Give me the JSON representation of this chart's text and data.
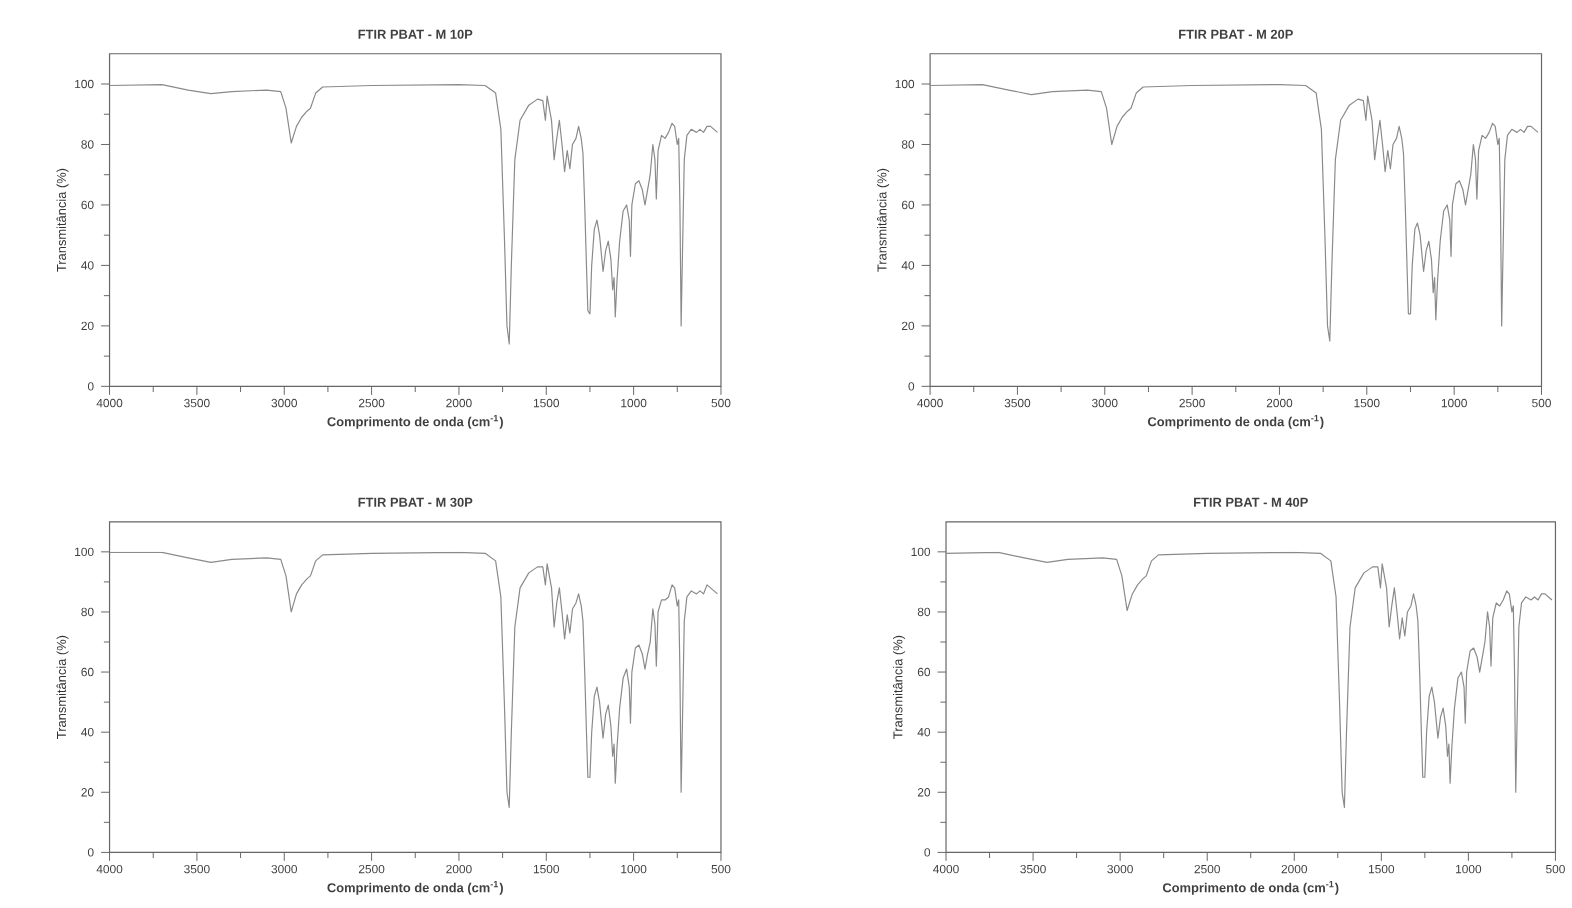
{
  "chart_data": [
    {
      "type": "line",
      "title": "FTIR PBAT - M 10P",
      "xlabel": "Comprimento de onda (cm$^{-1}$)",
      "ylabel": "Transmitância (%)",
      "color": "#8a8a8a",
      "xlim": [
        4000,
        500
      ],
      "ylim": [
        0,
        110
      ],
      "xticks": [
        4000,
        3500,
        3000,
        2500,
        2000,
        1500,
        1000,
        500
      ],
      "yticks": [
        0,
        20,
        40,
        60,
        80,
        100
      ],
      "x": [
        4000,
        3700,
        3550,
        3420,
        3300,
        3100,
        3020,
        2990,
        2960,
        2930,
        2900,
        2870,
        2850,
        2820,
        2780,
        2500,
        2000,
        1850,
        1790,
        1760,
        1740,
        1725,
        1712,
        1700,
        1680,
        1650,
        1600,
        1550,
        1520,
        1505,
        1495,
        1470,
        1455,
        1440,
        1425,
        1410,
        1395,
        1380,
        1365,
        1350,
        1330,
        1315,
        1300,
        1290,
        1280,
        1270,
        1262,
        1250,
        1240,
        1225,
        1210,
        1195,
        1175,
        1160,
        1145,
        1130,
        1120,
        1112,
        1105,
        1095,
        1080,
        1060,
        1040,
        1025,
        1018,
        1010,
        990,
        970,
        950,
        935,
        920,
        905,
        890,
        878,
        870,
        860,
        840,
        820,
        800,
        780,
        765,
        750,
        742,
        735,
        728,
        720,
        710,
        695,
        670,
        640,
        620,
        600,
        580,
        560,
        540,
        520
      ],
      "values": [
        99.5,
        99.8,
        98,
        96.8,
        97.5,
        98,
        97.5,
        92,
        80.5,
        86,
        89,
        91,
        92,
        97,
        99,
        99.5,
        99.8,
        99.5,
        97,
        85,
        50,
        20,
        14,
        40,
        75,
        88,
        93,
        95,
        94.5,
        88,
        96,
        88,
        75,
        82,
        88,
        80,
        71,
        78,
        72,
        80,
        82,
        86,
        82,
        77,
        60,
        40,
        25,
        24,
        40,
        52,
        55,
        50,
        38,
        45,
        48,
        42,
        32,
        36,
        23,
        35,
        48,
        58,
        60,
        55,
        43,
        60,
        67,
        68,
        65,
        60,
        65,
        70,
        80,
        75,
        62,
        78,
        83,
        82,
        84,
        87,
        86,
        80,
        82,
        60,
        20,
        45,
        75,
        83,
        85,
        84,
        85,
        84,
        86,
        86,
        85,
        84
      ]
    },
    {
      "type": "line",
      "title": "FTIR PBAT - M 20P",
      "xlabel": "Comprimento de onda (cm$^{-1}$)",
      "ylabel": "Transmitância (%)",
      "color": "#8a8a8a",
      "xlim": [
        4000,
        500
      ],
      "ylim": [
        0,
        110
      ],
      "xticks": [
        4000,
        3500,
        3000,
        2500,
        2000,
        1500,
        1000,
        500
      ],
      "yticks": [
        0,
        20,
        40,
        60,
        80,
        100
      ],
      "x": [
        4000,
        3700,
        3550,
        3420,
        3300,
        3100,
        3020,
        2990,
        2960,
        2930,
        2900,
        2870,
        2850,
        2820,
        2780,
        2500,
        2000,
        1850,
        1790,
        1760,
        1740,
        1725,
        1712,
        1700,
        1680,
        1650,
        1600,
        1550,
        1520,
        1505,
        1495,
        1470,
        1455,
        1440,
        1425,
        1410,
        1395,
        1380,
        1365,
        1350,
        1330,
        1315,
        1300,
        1290,
        1280,
        1270,
        1262,
        1250,
        1240,
        1225,
        1210,
        1195,
        1175,
        1160,
        1145,
        1130,
        1120,
        1112,
        1105,
        1095,
        1080,
        1060,
        1040,
        1025,
        1018,
        1010,
        990,
        970,
        950,
        935,
        920,
        905,
        890,
        878,
        870,
        860,
        840,
        820,
        800,
        780,
        765,
        750,
        742,
        735,
        728,
        720,
        710,
        695,
        670,
        640,
        620,
        600,
        580,
        560,
        540,
        520
      ],
      "values": [
        99.5,
        99.8,
        98,
        96.5,
        97.5,
        98,
        97.5,
        92,
        80,
        86,
        89,
        91,
        92,
        97,
        99,
        99.5,
        99.8,
        99.5,
        97,
        85,
        50,
        20,
        15,
        40,
        75,
        88,
        93,
        95,
        94.5,
        88,
        96,
        88,
        75,
        82,
        88,
        80,
        71,
        78,
        72,
        80,
        82,
        86,
        82,
        77,
        60,
        40,
        24,
        24,
        40,
        52,
        54,
        50,
        38,
        45,
        48,
        42,
        31,
        36,
        22,
        35,
        48,
        58,
        60,
        55,
        43,
        60,
        67,
        68,
        65,
        60,
        65,
        70,
        80,
        75,
        62,
        78,
        83,
        82,
        84,
        87,
        86,
        80,
        82,
        60,
        20,
        45,
        75,
        83,
        85,
        84,
        85,
        84,
        86,
        86,
        85,
        84
      ]
    },
    {
      "type": "line",
      "title": "FTIR PBAT - M 30P",
      "xlabel": "Comprimento de onda (cm$^{-1}$)",
      "ylabel": "Transmitância (%)",
      "color": "#8a8a8a",
      "xlim": [
        4000,
        500
      ],
      "ylim": [
        0,
        110
      ],
      "xticks": [
        4000,
        3500,
        3000,
        2500,
        2000,
        1500,
        1000,
        500
      ],
      "yticks": [
        0,
        20,
        40,
        60,
        80,
        100
      ],
      "x": [
        4000,
        3700,
        3550,
        3420,
        3300,
        3100,
        3020,
        2990,
        2960,
        2930,
        2900,
        2870,
        2850,
        2820,
        2780,
        2500,
        2000,
        1850,
        1790,
        1760,
        1740,
        1725,
        1712,
        1700,
        1680,
        1650,
        1600,
        1550,
        1520,
        1505,
        1495,
        1470,
        1455,
        1440,
        1425,
        1410,
        1395,
        1380,
        1365,
        1350,
        1330,
        1315,
        1300,
        1290,
        1280,
        1270,
        1262,
        1250,
        1240,
        1225,
        1210,
        1195,
        1175,
        1160,
        1145,
        1130,
        1120,
        1112,
        1105,
        1095,
        1080,
        1060,
        1040,
        1025,
        1018,
        1010,
        990,
        970,
        950,
        935,
        920,
        905,
        890,
        878,
        870,
        860,
        840,
        820,
        800,
        780,
        765,
        750,
        742,
        735,
        728,
        720,
        710,
        695,
        670,
        640,
        620,
        600,
        580,
        560,
        540,
        520
      ],
      "values": [
        99.8,
        99.8,
        98,
        96.5,
        97.5,
        98,
        97.5,
        92,
        80,
        86,
        89,
        91,
        92,
        97,
        99,
        99.5,
        99.8,
        99.5,
        97,
        85,
        50,
        20,
        15,
        40,
        75,
        88,
        93,
        95,
        95,
        89,
        96,
        88,
        75,
        83,
        88,
        80,
        71,
        79,
        73,
        81,
        83,
        86,
        82,
        77,
        60,
        40,
        25,
        25,
        40,
        52,
        55,
        50,
        38,
        46,
        49,
        42,
        32,
        36,
        23,
        35,
        48,
        58,
        61,
        55,
        43,
        60,
        68,
        69,
        66,
        61,
        66,
        70,
        81,
        76,
        62,
        80,
        84,
        84,
        85,
        89,
        88,
        82,
        84,
        60,
        20,
        45,
        77,
        85,
        87,
        86,
        87,
        86,
        89,
        88,
        87,
        86
      ]
    },
    {
      "type": "line",
      "title": "FTIR PBAT - M 40P",
      "xlabel": "Comprimento de onda (cm$^{-1}$)",
      "ylabel": "Transmitância (%)",
      "color": "#8a8a8a",
      "xlim": [
        4000,
        500
      ],
      "ylim": [
        0,
        110
      ],
      "xticks": [
        4000,
        3500,
        3000,
        2500,
        2000,
        1500,
        1000,
        500
      ],
      "yticks": [
        0,
        20,
        40,
        60,
        80,
        100
      ],
      "x": [
        4000,
        3700,
        3550,
        3420,
        3300,
        3100,
        3020,
        2990,
        2960,
        2930,
        2900,
        2870,
        2850,
        2820,
        2780,
        2500,
        2000,
        1850,
        1790,
        1760,
        1740,
        1725,
        1712,
        1700,
        1680,
        1650,
        1600,
        1550,
        1520,
        1505,
        1495,
        1470,
        1455,
        1440,
        1425,
        1410,
        1395,
        1380,
        1365,
        1350,
        1330,
        1315,
        1300,
        1290,
        1280,
        1270,
        1262,
        1250,
        1240,
        1225,
        1210,
        1195,
        1175,
        1160,
        1145,
        1130,
        1120,
        1112,
        1105,
        1095,
        1080,
        1060,
        1040,
        1025,
        1018,
        1010,
        990,
        970,
        950,
        935,
        920,
        905,
        890,
        878,
        870,
        860,
        840,
        820,
        800,
        780,
        765,
        750,
        742,
        735,
        728,
        720,
        710,
        695,
        670,
        640,
        620,
        600,
        580,
        560,
        540,
        520
      ],
      "values": [
        99.5,
        99.8,
        98,
        96.5,
        97.5,
        98,
        97.5,
        92,
        80.5,
        86,
        89,
        91,
        92,
        97,
        99,
        99.5,
        99.8,
        99.5,
        97,
        85,
        50,
        20,
        15,
        40,
        75,
        88,
        93,
        95,
        95,
        88,
        96,
        88,
        75,
        82,
        88,
        80,
        71,
        78,
        72,
        80,
        82,
        86,
        82,
        77,
        60,
        40,
        25,
        25,
        40,
        52,
        55,
        50,
        38,
        45,
        48,
        42,
        32,
        36,
        23,
        35,
        48,
        58,
        60,
        55,
        43,
        60,
        67,
        68,
        65,
        60,
        65,
        70,
        80,
        75,
        62,
        78,
        83,
        82,
        84,
        87,
        86,
        80,
        82,
        60,
        20,
        45,
        75,
        83,
        85,
        84,
        85,
        84,
        86,
        86,
        85,
        84
      ]
    }
  ]
}
